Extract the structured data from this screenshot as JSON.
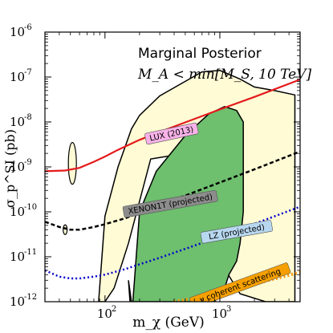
{
  "chart_data": {
    "type": "line",
    "title": "",
    "xlabel": "m_χ (GeV)",
    "ylabel": "σ_p^SI (pb)",
    "xscale": "log",
    "yscale": "log",
    "xlim": [
      30,
      5000
    ],
    "ylim": [
      1e-12,
      1e-06
    ],
    "grid": false,
    "x_ticks": [
      {
        "base": "10",
        "exp": "2",
        "value": 100
      },
      {
        "base": "10",
        "exp": "3",
        "value": 1000
      }
    ],
    "y_ticks": [
      {
        "base": "10",
        "exp": "-6",
        "value": 1e-06
      },
      {
        "base": "10",
        "exp": "-7",
        "value": 1e-07
      },
      {
        "base": "10",
        "exp": "-8",
        "value": 1e-08
      },
      {
        "base": "10",
        "exp": "-9",
        "value": 1e-09
      },
      {
        "base": "10",
        "exp": "-10",
        "value": 1e-10
      },
      {
        "base": "10",
        "exp": "-11",
        "value": 1e-11
      },
      {
        "base": "10",
        "exp": "-12",
        "value": 1e-12
      }
    ],
    "annotations": {
      "title": "Marginal Posterior",
      "subtitle": "M_A < min[M_S, 10 TeV]"
    },
    "series": [
      {
        "name": "LUX (2013)",
        "color": "#e41a1c",
        "style": "solid",
        "x": [
          30,
          45,
          60,
          80,
          100,
          130,
          200,
          300,
          500,
          1000,
          2000,
          5000
        ],
        "y": [
          8e-10,
          8.3e-10,
          9.5e-10,
          1.3e-09,
          1.7e-09,
          2.4e-09,
          4e-09,
          6e-09,
          9.8e-09,
          1.9e-08,
          3.6e-08,
          8.8e-08
        ]
      },
      {
        "name": "XENON1T (projected)",
        "color": "#000000",
        "style": "dashed",
        "x": [
          30,
          40,
          50,
          60,
          80,
          100,
          150,
          200,
          300,
          500,
          1000,
          2000,
          5000
        ],
        "y": [
          6e-11,
          4.6e-11,
          4e-11,
          4e-11,
          4.6e-11,
          5.3e-11,
          7.2e-11,
          9.5e-11,
          1.4e-10,
          2.3e-10,
          4.5e-10,
          8.8e-10,
          2.2e-09
        ]
      },
      {
        "name": "LZ (projected)",
        "color": "#0000cc",
        "style": "dotted",
        "x": [
          30,
          40,
          50,
          60,
          80,
          100,
          150,
          200,
          300,
          500,
          1000,
          2000,
          5000
        ],
        "y": [
          5e-12,
          3.6e-12,
          3.3e-12,
          3.3e-12,
          3.6e-12,
          4e-12,
          5.3e-12,
          6.8e-12,
          9.5e-12,
          1.5e-11,
          2.8e-11,
          5.4e-11,
          1.3e-10
        ]
      },
      {
        "name": "ν coherent scattering",
        "color": "#ff9900",
        "style": "dotted",
        "x": [
          400,
          600,
          1000,
          2000,
          5000
        ],
        "y": [
          1e-12,
          1.2e-12,
          1.6e-12,
          2.5e-12,
          4.5e-12
        ]
      }
    ],
    "regions": [
      {
        "name": "outer",
        "color": "#fffbd5",
        "x": [
          88,
          100,
          130,
          170,
          200,
          300,
          500,
          700,
          1000,
          1500,
          2000,
          3000,
          4500,
          4500,
          2500,
          1500,
          1000,
          700,
          500,
          250,
          160,
          120,
          100
        ],
        "y": [
          1e-12,
          8e-11,
          1e-09,
          7e-09,
          1.4e-08,
          3.8e-08,
          8e-08,
          1.3e-07,
          1.4e-07,
          9e-08,
          6e-08,
          5e-08,
          4e-08,
          1e-12,
          1e-12,
          1.5e-12,
          8e-12,
          2.5e-10,
          2e-09,
          1.5e-09,
          2e-11,
          2e-12,
          1e-12
        ]
      },
      {
        "name": "inner",
        "color": "#6ebf6e",
        "x": [
          175,
          200,
          280,
          500,
          800,
          1100,
          1400,
          1600,
          1600,
          1500,
          1400,
          1200,
          1100,
          900,
          700,
          500,
          350,
          300,
          220,
          170,
          160,
          165
        ],
        "y": [
          1e-12,
          1e-10,
          8e-10,
          5e-09,
          1.5e-08,
          2.2e-08,
          1.8e-08,
          1e-08,
          1e-10,
          2e-11,
          8e-12,
          4e-12,
          2e-12,
          1e-12,
          1e-12,
          1e-12,
          1e-12,
          1e-12,
          1e-12,
          1e-12,
          3e-12,
          1e-12
        ]
      }
    ],
    "series_labels": [
      {
        "text": "LUX (2013)",
        "bg": "#f7b2e8",
        "x": 380,
        "y": 5.5e-09,
        "angle": -12
      },
      {
        "text": "XENON1T (projected)",
        "bg": "#8c8c8c",
        "x": 370,
        "y": 1.5e-10,
        "angle": -10
      },
      {
        "text": "LZ (projected)",
        "bg": "#b8d8f0",
        "x": 1400,
        "y": 3.6e-11,
        "angle": -10
      },
      {
        "text": "ν coherent scattering",
        "bg": "#f5a000",
        "x": 1500,
        "y": 2.3e-12,
        "angle": -20
      }
    ]
  }
}
